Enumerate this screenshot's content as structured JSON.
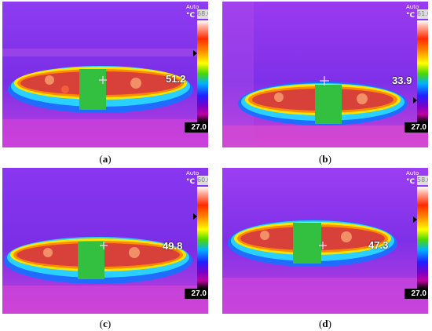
{
  "panels": [
    {
      "id": "a",
      "label": "a",
      "reading": "51.2",
      "max": "68.0",
      "min": "27.0",
      "auto": "Auto",
      "unit": "°C"
    },
    {
      "id": "b",
      "label": "b",
      "reading": "33.9",
      "max": "61.0",
      "min": "27.0",
      "auto": "Auto",
      "unit": "°C"
    },
    {
      "id": "c",
      "label": "c",
      "reading": "49.8",
      "max": "60.0",
      "min": "27.0",
      "auto": "Auto",
      "unit": "°C"
    },
    {
      "id": "d",
      "label": "d",
      "reading": "47.3",
      "max": "58.0",
      "min": "27.0",
      "auto": "Auto",
      "unit": "°C"
    }
  ],
  "palette": {
    "background": "#8a2cf0",
    "hot": "#d8403a",
    "warm": "#ff8a00",
    "mid": "#ffe800",
    "green": "#33c040",
    "cool": "#1faaff",
    "cold": "#2040ff",
    "base": "#c83ce0"
  }
}
